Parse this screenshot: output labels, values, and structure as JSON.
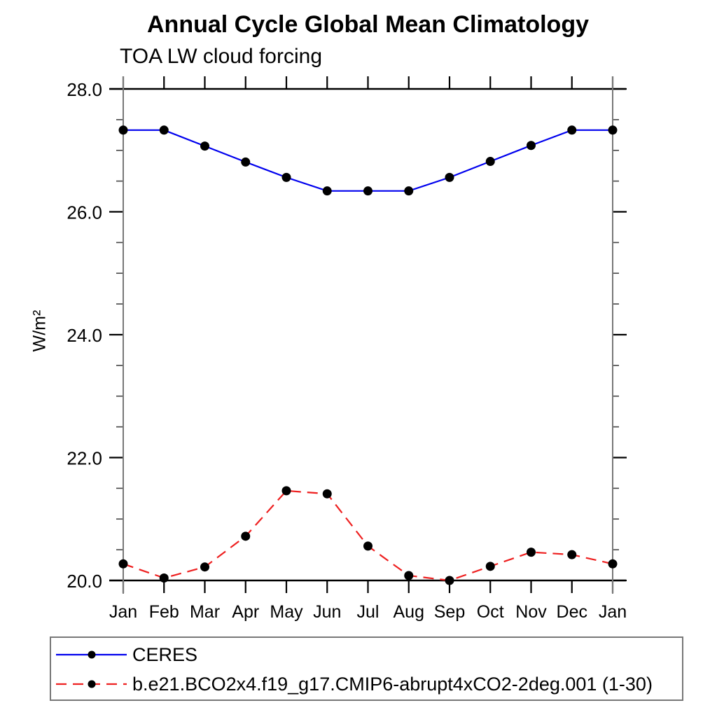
{
  "title": "Annual Cycle Global Mean Climatology",
  "subtitle": "TOA LW cloud forcing",
  "ylabel": "W/m²",
  "chart_data": {
    "type": "line",
    "x_categories": [
      "Jan",
      "Feb",
      "Mar",
      "Apr",
      "May",
      "Jun",
      "Jul",
      "Aug",
      "Sep",
      "Oct",
      "Nov",
      "Dec",
      "Jan"
    ],
    "ylim": [
      20.0,
      28.0
    ],
    "ytick_major": [
      20.0,
      22.0,
      24.0,
      26.0,
      28.0
    ],
    "ytick_labels": [
      "20.0",
      "22.0",
      "24.0",
      "26.0",
      "28.0"
    ],
    "ytick_minor_step": 0.5,
    "grid": false,
    "legend_position": "bottom",
    "marker_color": "#000000",
    "axis_color": "#000000",
    "side_axis_color": "#787878",
    "series": [
      {
        "name": "CERES",
        "color": "#0000ee",
        "dash": "solid",
        "marker": "black-dot",
        "values": [
          27.33,
          27.33,
          27.07,
          26.81,
          26.56,
          26.34,
          26.34,
          26.34,
          26.56,
          26.82,
          27.08,
          27.33,
          27.33
        ]
      },
      {
        "name": "b.e21.BCO2x4.f19_g17.CMIP6-abrupt4xCO2-2deg.001 (1-30)",
        "color": "#ee2020",
        "dash": "dashed",
        "marker": "black-dot",
        "values": [
          20.27,
          20.04,
          20.22,
          20.72,
          21.46,
          21.41,
          20.56,
          20.08,
          20.0,
          20.23,
          20.46,
          20.42,
          20.27
        ]
      }
    ]
  }
}
